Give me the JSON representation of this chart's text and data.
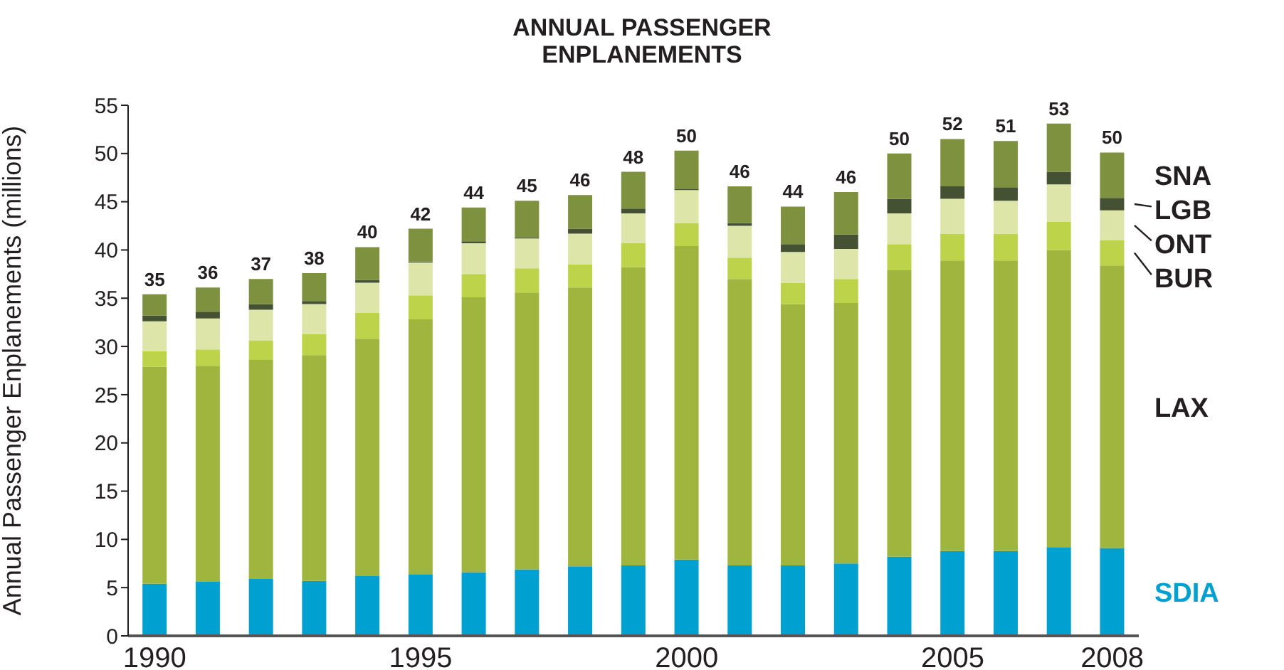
{
  "chart_data": {
    "type": "bar",
    "title": "ANNUAL PASSENGER ENPLANEMENTS",
    "ylabel": "Annual Passenger Enplanements (millions)",
    "categories": [
      "1990",
      null,
      null,
      null,
      null,
      "1995",
      null,
      null,
      null,
      null,
      "2000",
      null,
      null,
      null,
      null,
      "2005",
      null,
      null,
      "2008"
    ],
    "stacked": true,
    "series": [
      {
        "name": "SDIA",
        "color": "#00a0d0",
        "values": [
          5.4,
          5.6,
          5.9,
          5.7,
          6.2,
          6.4,
          6.6,
          6.9,
          7.2,
          7.3,
          7.9,
          7.3,
          7.3,
          7.5,
          8.2,
          8.8,
          8.8,
          9.2,
          9.1
        ]
      },
      {
        "name": "LAX",
        "color": "#9fb53e",
        "values": [
          22.5,
          22.4,
          22.7,
          23.4,
          24.6,
          26.4,
          28.5,
          28.7,
          28.9,
          30.9,
          32.5,
          29.7,
          27.1,
          27.0,
          29.7,
          30.1,
          30.1,
          30.8,
          29.3
        ]
      },
      {
        "name": "BUR",
        "color": "#bdd34a",
        "values": [
          1.6,
          1.7,
          2.0,
          2.2,
          2.7,
          2.5,
          2.4,
          2.5,
          2.4,
          2.5,
          2.4,
          2.2,
          2.2,
          2.5,
          2.7,
          2.8,
          2.8,
          2.9,
          2.6
        ]
      },
      {
        "name": "ONT",
        "color": "#dde6a8",
        "values": [
          3.1,
          3.2,
          3.2,
          3.1,
          3.1,
          3.4,
          3.2,
          3.1,
          3.2,
          3.1,
          3.4,
          3.3,
          3.2,
          3.1,
          3.2,
          3.6,
          3.4,
          3.9,
          3.1
        ]
      },
      {
        "name": "LGB",
        "color": "#445233",
        "values": [
          0.6,
          0.7,
          0.6,
          0.3,
          0.3,
          0.1,
          0.2,
          0.1,
          0.5,
          0.5,
          0.1,
          0.3,
          0.8,
          1.5,
          1.5,
          1.3,
          1.4,
          1.3,
          1.3
        ]
      },
      {
        "name": "SNA",
        "color": "#7d913f",
        "values": [
          2.2,
          2.5,
          2.6,
          2.9,
          3.4,
          3.4,
          3.5,
          3.8,
          3.5,
          3.8,
          4.0,
          3.8,
          3.9,
          4.4,
          4.7,
          4.9,
          4.8,
          5.0,
          4.7
        ]
      }
    ],
    "totals": [
      "35",
      "36",
      "37",
      "38",
      "40",
      "42",
      "44",
      "45",
      "46",
      "48",
      "50",
      "46",
      "44",
      "46",
      "50",
      "52",
      "51",
      "53",
      "50"
    ],
    "ylim": [
      0,
      55
    ],
    "yticks": [
      0,
      5,
      10,
      15,
      20,
      25,
      30,
      35,
      40,
      45,
      50,
      55
    ],
    "legend": "right"
  }
}
